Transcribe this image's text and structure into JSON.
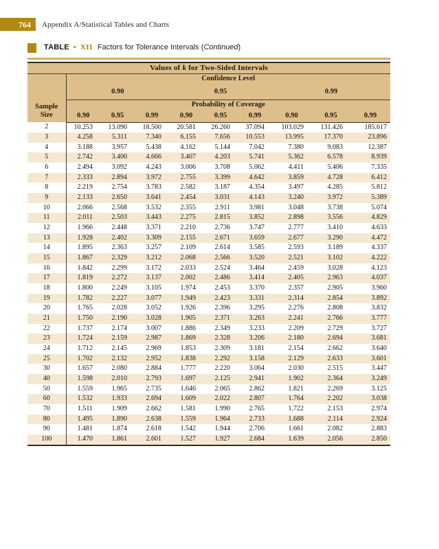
{
  "page": {
    "page_number": "764",
    "running_head": "Appendix A/Statistical Tables and Charts"
  },
  "table_title": {
    "label": "TABLE",
    "bullet": "•",
    "number": "XII",
    "caption_prefix": "Factors for Tolerance Intervals (",
    "caption_continued": "Continued",
    "caption_suffix": ")"
  },
  "table": {
    "title_prefix": "Values of ",
    "title_k": "k",
    "title_suffix": " for Two-Sided Intervals",
    "confidence_level_label": "Confidence Level",
    "confidence_levels": [
      "0.90",
      "0.95",
      "0.99"
    ],
    "probability_label": "Probability of Coverage",
    "coverage_headers": [
      "0.90",
      "0.95",
      "0.99",
      "0.90",
      "0.95",
      "0.99",
      "0.90",
      "0.95",
      "0.99"
    ],
    "sample_size_line1": "Sample",
    "sample_size_line2": "Size",
    "rows": [
      {
        "n": "2",
        "values": [
          "10.253",
          "13.090",
          "18.500",
          "20.581",
          "26.260",
          "37.094",
          "103.029",
          "131.426",
          "185.617"
        ]
      },
      {
        "n": "3",
        "values": [
          "4.258",
          "5.311",
          "7.340",
          "6.155",
          "7.656",
          "10.553",
          "13.995",
          "17.370",
          "23.896"
        ]
      },
      {
        "n": "4",
        "values": [
          "3.188",
          "3.957",
          "5.438",
          "4.162",
          "5.144",
          "7.042",
          "7.380",
          "9.083",
          "12.387"
        ]
      },
      {
        "n": "5",
        "values": [
          "2.742",
          "3.400",
          "4.666",
          "3.407",
          "4.203",
          "5.741",
          "5.362",
          "6.578",
          "8.939"
        ]
      },
      {
        "n": "6",
        "values": [
          "2.494",
          "3.092",
          "4.243",
          "3.006",
          "3.708",
          "5.062",
          "4.411",
          "5.406",
          "7.335"
        ]
      },
      {
        "n": "7",
        "values": [
          "2.333",
          "2.894",
          "3.972",
          "2.755",
          "3.399",
          "4.642",
          "3.859",
          "4.728",
          "6.412"
        ]
      },
      {
        "n": "8",
        "values": [
          "2.219",
          "2.754",
          "3.783",
          "2.582",
          "3.187",
          "4.354",
          "3.497",
          "4.285",
          "5.812"
        ]
      },
      {
        "n": "9",
        "values": [
          "2.133",
          "2.650",
          "3.641",
          "2.454",
          "3.031",
          "4.143",
          "3.240",
          "3.972",
          "5.389"
        ]
      },
      {
        "n": "10",
        "values": [
          "2.066",
          "2.568",
          "3.532",
          "2.355",
          "2.911",
          "3.981",
          "3.048",
          "3.738",
          "5.074"
        ]
      },
      {
        "n": "11",
        "values": [
          "2.011",
          "2.503",
          "3.443",
          "2.275",
          "2.815",
          "3.852",
          "2.898",
          "3.556",
          "4.829"
        ]
      },
      {
        "n": "12",
        "values": [
          "1.966",
          "2.448",
          "3.371",
          "2.210",
          "2.736",
          "3.747",
          "2.777",
          "3.410",
          "4.633"
        ]
      },
      {
        "n": "13",
        "values": [
          "1.928",
          "2.402",
          "3.309",
          "2.155",
          "2.671",
          "3.659",
          "2.677",
          "3.290",
          "4.472"
        ]
      },
      {
        "n": "14",
        "values": [
          "1.895",
          "2.363",
          "3.257",
          "2.109",
          "2.614",
          "3.585",
          "2.593",
          "3.189",
          "4.337"
        ]
      },
      {
        "n": "15",
        "values": [
          "1.867",
          "2.329",
          "3.212",
          "2.068",
          "2.566",
          "3.520",
          "2.521",
          "3.102",
          "4.222"
        ]
      },
      {
        "n": "16",
        "values": [
          "1.842",
          "2.299",
          "3.172",
          "2.033",
          "2.524",
          "3.464",
          "2.459",
          "3.028",
          "4.123"
        ]
      },
      {
        "n": "17",
        "values": [
          "1.819",
          "2.272",
          "3.137",
          "2.002",
          "2.486",
          "3.414",
          "2.405",
          "2.963",
          "4.037"
        ]
      },
      {
        "n": "18",
        "values": [
          "1.800",
          "2.249",
          "3.105",
          "1.974",
          "2.453",
          "3.370",
          "2.357",
          "2.905",
          "3.960"
        ]
      },
      {
        "n": "19",
        "values": [
          "1.782",
          "2.227",
          "3.077",
          "1.949",
          "2.423",
          "3.331",
          "2.314",
          "2.854",
          "3.892"
        ]
      },
      {
        "n": "20",
        "values": [
          "1.765",
          "2.028",
          "3.052",
          "1.926",
          "2.396",
          "3.295",
          "2.276",
          "2.808",
          "3.832"
        ]
      },
      {
        "n": "21",
        "values": [
          "1.750",
          "2.190",
          "3.028",
          "1.905",
          "2.371",
          "3.263",
          "2.241",
          "2.766",
          "3.777"
        ]
      },
      {
        "n": "22",
        "values": [
          "1.737",
          "2.174",
          "3.007",
          "1.886",
          "2.349",
          "3.233",
          "2.209",
          "2.729",
          "3.727"
        ]
      },
      {
        "n": "23",
        "values": [
          "1.724",
          "2.159",
          "2.987",
          "1.869",
          "2.328",
          "3.206",
          "2.180",
          "2.694",
          "3.681"
        ]
      },
      {
        "n": "24",
        "values": [
          "1.712",
          "2.145",
          "2.969",
          "1.853",
          "2.309",
          "3.181",
          "2.154",
          "2.662",
          "3.640"
        ]
      },
      {
        "n": "25",
        "values": [
          "1.702",
          "2.132",
          "2.952",
          "1.838",
          "2.292",
          "3.158",
          "2.129",
          "2.633",
          "3.601"
        ]
      },
      {
        "n": "30",
        "values": [
          "1.657",
          "2.080",
          "2.884",
          "1.777",
          "2.220",
          "3.064",
          "2.030",
          "2.515",
          "3.447"
        ]
      },
      {
        "n": "40",
        "values": [
          "1.598",
          "2.010",
          "2.793",
          "1.697",
          "2.125",
          "2.941",
          "1.902",
          "2.364",
          "3.249"
        ]
      },
      {
        "n": "50",
        "values": [
          "1.559",
          "1.965",
          "2.735",
          "1.646",
          "2.065",
          "2.862",
          "1.821",
          "2.269",
          "3.125"
        ]
      },
      {
        "n": "60",
        "values": [
          "1.532",
          "1.933",
          "2.694",
          "1.609",
          "2.022",
          "2.807",
          "1.764",
          "2.202",
          "3.038"
        ]
      },
      {
        "n": "70",
        "values": [
          "1.511",
          "1.909",
          "2.662",
          "1.581",
          "1.990",
          "2.765",
          "1.722",
          "2.153",
          "2.974"
        ]
      },
      {
        "n": "80",
        "values": [
          "1.495",
          "1.890",
          "2.638",
          "1.559",
          "1.964",
          "2.733",
          "1.688",
          "2.114",
          "2.924"
        ]
      },
      {
        "n": "90",
        "values": [
          "1.481",
          "1.874",
          "2.618",
          "1.542",
          "1.944",
          "2.706",
          "1.661",
          "2.082",
          "2.883"
        ]
      },
      {
        "n": "100",
        "values": [
          "1.470",
          "1.861",
          "2.601",
          "1.527",
          "1.927",
          "2.684",
          "1.639",
          "2.056",
          "2.850"
        ]
      }
    ]
  },
  "colors": {
    "accent_gold": "#b1890f",
    "header_tan": "#debf8b",
    "stripe_cream": "#f5e8d2",
    "rule_dark": "#342b1c",
    "title_rule_gold": "#d4ad64"
  }
}
